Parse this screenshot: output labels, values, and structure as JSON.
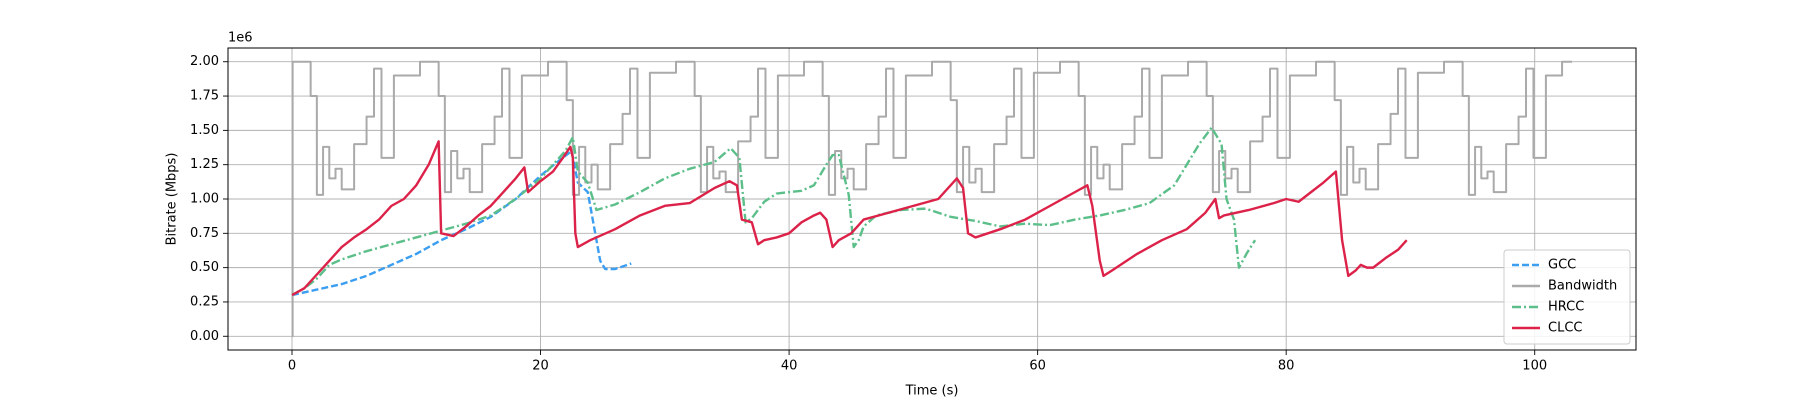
{
  "chart_data": {
    "type": "line",
    "xlabel": "Time (s)",
    "ylabel": "Bitrate (Mbps)",
    "y_offset_label": "1e6",
    "xlim": [
      -5.15,
      108.15
    ],
    "ylim": [
      -0.1,
      2.1
    ],
    "xticks": [
      0,
      20,
      40,
      60,
      80,
      100
    ],
    "yticks": [
      {
        "value": 0,
        "label": "0.00"
      },
      {
        "value": 0.25,
        "label": "0.25"
      },
      {
        "value": 0.5,
        "label": "0.50"
      },
      {
        "value": 0.75,
        "label": "0.75"
      },
      {
        "value": 1,
        "label": "1.00"
      },
      {
        "value": 1.25,
        "label": "1.25"
      },
      {
        "value": 1.5,
        "label": "1.50"
      },
      {
        "value": 1.75,
        "label": "1.75"
      },
      {
        "value": 2,
        "label": "2.00"
      }
    ],
    "grid": true,
    "legend": "lower right",
    "series": [
      {
        "name": "GCC",
        "color": "#3b9ef0",
        "linestyle": "dashed",
        "x": [
          0,
          2,
          4,
          6,
          8,
          10,
          12,
          14,
          16,
          18,
          20,
          21.5,
          22.5,
          23,
          23.8,
          24.3,
          24.8,
          25.2,
          26,
          27.3
        ],
        "values": [
          0.3,
          0.34,
          0.38,
          0.44,
          0.52,
          0.6,
          0.7,
          0.78,
          0.87,
          1.0,
          1.17,
          1.28,
          1.35,
          1.12,
          1.05,
          0.8,
          0.55,
          0.49,
          0.49,
          0.53
        ]
      },
      {
        "name": "Bandwidth",
        "color": "#aaaaaa",
        "linestyle": "solid",
        "drawstyle": "steps-post",
        "x": [
          0,
          0.05,
          1.5,
          2.0,
          2.5,
          3.0,
          3.5,
          4.0,
          5.0,
          6.0,
          6.6,
          7.2,
          8.2,
          10.3,
          11.8,
          12.3,
          12.8,
          13.3,
          13.8,
          14.3,
          15.3,
          16.3,
          16.9,
          17.5,
          18.5,
          20.6,
          22.1,
          22.6,
          23.1,
          23.6,
          24.1,
          24.6,
          25.6,
          26.6,
          27.2,
          27.8,
          28.8,
          30.9,
          32.4,
          32.9,
          33.4,
          33.9,
          34.4,
          34.9,
          35.9,
          36.9,
          37.5,
          38.1,
          39.1,
          41.2,
          42.7,
          43.2,
          43.7,
          44.2,
          44.7,
          45.2,
          46.2,
          47.2,
          47.8,
          48.4,
          49.4,
          51.5,
          53.0,
          53.5,
          54.0,
          54.5,
          55.0,
          55.5,
          56.5,
          57.5,
          58.1,
          58.7,
          59.7,
          61.8,
          63.3,
          63.8,
          64.3,
          64.8,
          65.3,
          65.8,
          66.8,
          67.8,
          68.4,
          69.0,
          70.0,
          72.1,
          73.6,
          74.1,
          74.6,
          75.1,
          75.6,
          76.1,
          77.1,
          78.1,
          78.7,
          79.3,
          80.3,
          82.4,
          83.9,
          84.4,
          84.9,
          85.4,
          85.9,
          86.4,
          87.4,
          88.4,
          89.0,
          89.6,
          90.6,
          92.7,
          94.2,
          94.7,
          95.2,
          95.7,
          96.2,
          96.7,
          97.7,
          98.7,
          99.3,
          99.9,
          100.9,
          102.2,
          103.0
        ],
        "values": [
          0,
          2.0,
          1.75,
          1.03,
          1.38,
          1.15,
          1.22,
          1.07,
          1.4,
          1.6,
          1.95,
          1.3,
          1.9,
          2.0,
          1.75,
          1.05,
          1.35,
          1.15,
          1.22,
          1.05,
          1.4,
          1.6,
          1.95,
          1.3,
          1.9,
          2.0,
          1.72,
          1.03,
          1.38,
          1.12,
          1.25,
          1.07,
          1.4,
          1.62,
          1.95,
          1.3,
          1.92,
          2.0,
          1.75,
          1.05,
          1.38,
          1.15,
          1.2,
          1.05,
          1.42,
          1.6,
          1.95,
          1.3,
          1.9,
          2.0,
          1.75,
          1.03,
          1.35,
          1.15,
          1.22,
          1.07,
          1.4,
          1.6,
          1.95,
          1.3,
          1.9,
          2.0,
          1.72,
          1.05,
          1.38,
          1.12,
          1.22,
          1.05,
          1.4,
          1.6,
          1.95,
          1.3,
          1.92,
          2.0,
          1.75,
          1.03,
          1.38,
          1.15,
          1.25,
          1.07,
          1.4,
          1.6,
          1.95,
          1.3,
          1.9,
          2.0,
          1.75,
          1.05,
          1.35,
          1.15,
          1.22,
          1.05,
          1.42,
          1.6,
          1.95,
          1.3,
          1.9,
          2.0,
          1.72,
          1.03,
          1.38,
          1.12,
          1.22,
          1.07,
          1.4,
          1.62,
          1.95,
          1.3,
          1.92,
          2.0,
          1.75,
          1.03,
          1.38,
          1.15,
          1.2,
          1.05,
          1.4,
          1.6,
          1.95,
          1.3,
          1.9,
          2.0,
          2.0
        ]
      },
      {
        "name": "HRCC",
        "color": "#5cbf8a",
        "linestyle": "dashdot",
        "x": [
          0,
          1,
          2,
          3,
          4,
          6,
          8,
          10,
          12,
          14,
          16,
          18,
          20,
          21,
          22,
          22.6,
          23,
          23.8,
          24.5,
          26,
          28,
          30,
          32,
          34,
          35.3,
          36,
          36.5,
          37,
          38,
          39,
          40,
          41,
          42,
          43,
          43.5,
          44,
          44.8,
          45.2,
          45.6,
          46,
          47,
          49,
          51,
          53,
          55,
          57,
          59,
          61,
          63,
          65,
          67,
          69,
          71,
          72,
          73,
          74,
          74.8,
          75.2,
          75.8,
          76.2,
          76.8,
          77.5
        ],
        "values": [
          0.3,
          0.35,
          0.42,
          0.52,
          0.56,
          0.62,
          0.67,
          0.72,
          0.77,
          0.82,
          0.88,
          1.0,
          1.15,
          1.25,
          1.35,
          1.45,
          1.2,
          1.12,
          0.92,
          0.96,
          1.05,
          1.15,
          1.22,
          1.27,
          1.37,
          1.3,
          0.83,
          0.86,
          0.98,
          1.04,
          1.05,
          1.06,
          1.1,
          1.25,
          1.32,
          1.32,
          1.03,
          0.65,
          0.7,
          0.8,
          0.88,
          0.92,
          0.93,
          0.87,
          0.84,
          0.8,
          0.82,
          0.81,
          0.85,
          0.88,
          0.92,
          0.97,
          1.1,
          1.25,
          1.4,
          1.52,
          1.4,
          1.0,
          0.85,
          0.5,
          0.6,
          0.7
        ]
      },
      {
        "name": "CLCC",
        "color": "#dc2249",
        "linestyle": "solid",
        "x": [
          0,
          1,
          2,
          3,
          4,
          5,
          6,
          7,
          8,
          9,
          10,
          11,
          11.8,
          12,
          13,
          14,
          15,
          16,
          17,
          18,
          18.7,
          19,
          20,
          21,
          21.8,
          22.4,
          22.6,
          22.8,
          23,
          24,
          26,
          28,
          30,
          32,
          34,
          35.2,
          35.8,
          36.2,
          37,
          37.5,
          38,
          39,
          40,
          41,
          42,
          42.5,
          43,
          43.5,
          44,
          45,
          46,
          48,
          50,
          52,
          53.5,
          54,
          54.4,
          55,
          57,
          59,
          61,
          63,
          64,
          64.4,
          65,
          65.3,
          66,
          68,
          70,
          72,
          73.5,
          74.3,
          74.6,
          75,
          77,
          79,
          80,
          81,
          82,
          83,
          84,
          84.5,
          85,
          85.6,
          86,
          86.5,
          87,
          88,
          89,
          89.7
        ],
        "values": [
          0.3,
          0.35,
          0.45,
          0.55,
          0.65,
          0.72,
          0.78,
          0.85,
          0.95,
          1.0,
          1.1,
          1.25,
          1.42,
          0.75,
          0.73,
          0.8,
          0.88,
          0.95,
          1.05,
          1.15,
          1.23,
          1.05,
          1.13,
          1.2,
          1.3,
          1.38,
          1.3,
          0.75,
          0.65,
          0.7,
          0.78,
          0.88,
          0.95,
          0.97,
          1.08,
          1.13,
          1.1,
          0.85,
          0.83,
          0.67,
          0.7,
          0.72,
          0.75,
          0.83,
          0.88,
          0.9,
          0.85,
          0.65,
          0.7,
          0.75,
          0.85,
          0.9,
          0.95,
          1.0,
          1.15,
          1.08,
          0.75,
          0.72,
          0.78,
          0.85,
          0.95,
          1.05,
          1.1,
          0.95,
          0.55,
          0.44,
          0.48,
          0.6,
          0.7,
          0.78,
          0.9,
          1.0,
          0.86,
          0.88,
          0.92,
          0.97,
          1.0,
          0.98,
          1.05,
          1.12,
          1.2,
          0.7,
          0.44,
          0.48,
          0.52,
          0.5,
          0.5,
          0.57,
          0.63,
          0.7
        ]
      }
    ]
  }
}
